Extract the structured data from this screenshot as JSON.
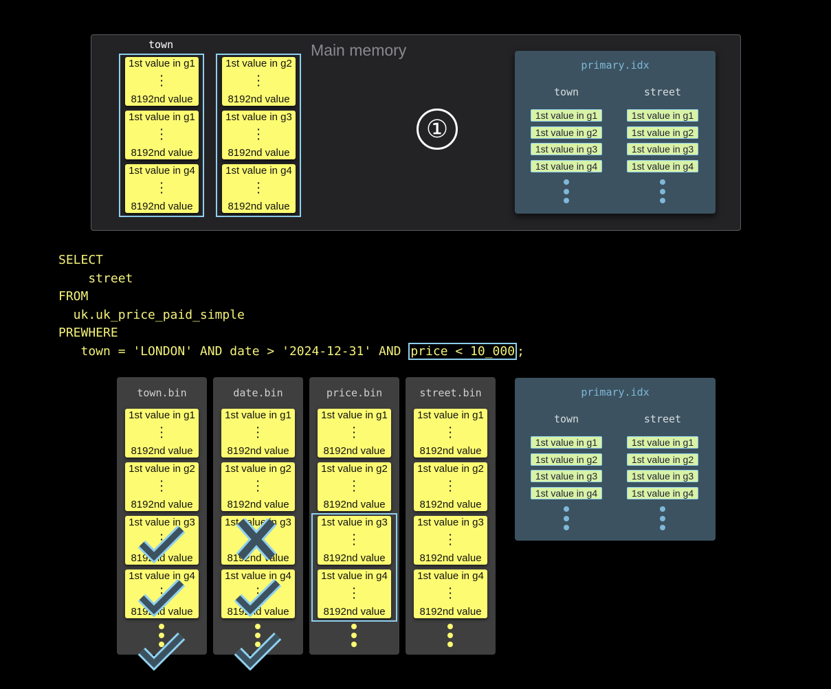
{
  "main_memory": {
    "label": "Main memory",
    "column_label": "town",
    "step": "①",
    "columns": [
      [
        "1st value in g1",
        "1st value in g1",
        "1st value in g4"
      ],
      [
        "1st value in g2",
        "1st value in g3",
        "1st value in g4"
      ]
    ],
    "last_value": "8192nd value"
  },
  "primary_index": {
    "title": "primary.idx",
    "columns": [
      {
        "name": "town",
        "values": [
          "1st value in g1",
          "1st value in g2",
          "1st value in g3",
          "1st value in g4"
        ]
      },
      {
        "name": "street",
        "values": [
          "1st value in g1",
          "1st value in g2",
          "1st value in g3",
          "1st value in g4"
        ]
      }
    ]
  },
  "query": {
    "lines": [
      "SELECT",
      "    street",
      "FROM",
      "  uk.uk_price_paid_simple",
      "PREWHERE",
      "   town = 'LONDON' AND date > '2024-12-31' AND "
    ],
    "highlight": "price < 10_000",
    "end": ";"
  },
  "bins": [
    {
      "title": "town.bin",
      "granules": [
        "1st value in g1",
        "1st value in g2",
        "1st value in g3",
        "1st value in g4"
      ],
      "marks": [
        "",
        "check",
        "check",
        "check"
      ]
    },
    {
      "title": "date.bin",
      "granules": [
        "1st value in g1",
        "1st value in g2",
        "1st value in g3",
        "1st value in g4"
      ],
      "marks": [
        "",
        "cross",
        "check",
        "check"
      ]
    },
    {
      "title": "price.bin",
      "granules": [
        "1st value in g1",
        "1st value in g2",
        "1st value in g3",
        "1st value in g4"
      ],
      "marks": [
        "",
        "",
        "",
        ""
      ],
      "selected": [
        2,
        3
      ]
    },
    {
      "title": "street.bin",
      "granules": [
        "1st value in g1",
        "1st value in g2",
        "1st value in g3",
        "1st value in g4"
      ],
      "marks": [
        "",
        "",
        "",
        ""
      ]
    }
  ],
  "colors": {
    "card": "#fdfb72",
    "highlight": "#8fd0ee",
    "index_bg": "#3c5260",
    "sql": "#f4f27a",
    "mark": "#3c5260"
  }
}
